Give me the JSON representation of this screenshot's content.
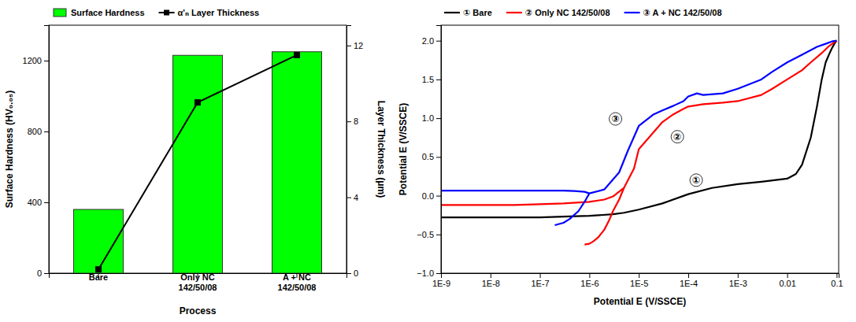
{
  "chart_data": [
    {
      "type": "bar",
      "xlabel": "Process",
      "ylabel": "Surface Hardness (HV₀.₀₅)",
      "y2label": "Layer Thickness (μm)",
      "categories": [
        "Bare",
        "Only NC\n142/50/08",
        "A + NC\n142/50/08"
      ],
      "series": [
        {
          "name": "Surface Hardness",
          "type": "bar",
          "color": "#00FF00",
          "values": [
            360,
            1230,
            1250
          ]
        },
        {
          "name": "α'ₙ Layer Thickness",
          "type": "line",
          "color": "black",
          "marker": "square",
          "axis": "y2",
          "values": [
            0.2,
            9.0,
            11.5
          ]
        }
      ],
      "ylim": [
        0,
        1400
      ],
      "yticks": [
        0,
        400,
        800,
        1200
      ],
      "y2lim": [
        0,
        13.07
      ],
      "y2ticks": [
        0,
        4,
        8,
        12
      ],
      "legend": "upper left"
    },
    {
      "type": "line",
      "xlabel": "Potential E (V/SSCE)",
      "ylabel": "Potential E (V/SSCE)",
      "log": "x",
      "xlim": [
        1e-09,
        0.11
      ],
      "xticks": [
        {
          "value": 1e-09,
          "label": "1E-9"
        },
        {
          "value": 1e-08,
          "label": "1E-8"
        },
        {
          "value": 1e-07,
          "label": "1E-7"
        },
        {
          "value": 1e-06,
          "label": "1E-6"
        },
        {
          "value": 1e-05,
          "label": "1E-5"
        },
        {
          "value": 0.0001,
          "label": "1E-4"
        },
        {
          "value": 0.001,
          "label": "1E-3"
        },
        0.01,
        0.1
      ],
      "ylim": [
        -1.0,
        2.2
      ],
      "yticks": [
        {
          "value": -1.0,
          "label": "−1.0"
        },
        {
          "value": -0.5,
          "label": "−0.5"
        },
        {
          "value": 0.0,
          "label": "0.0"
        },
        0.5,
        {
          "value": 1.0,
          "label": "1.0"
        },
        1.5,
        {
          "value": 2.0,
          "label": "2.0"
        }
      ],
      "legend": "upper left",
      "series": [
        {
          "name": "① Bare",
          "color": "black",
          "x": [
            1e-09,
            3e-09,
            1e-08,
            3e-08,
            1e-07,
            3e-07,
            1e-06,
            3e-06,
            5e-06,
            1e-05,
            3e-05,
            0.0001,
            0.0003,
            0.001,
            0.003,
            0.01,
            0.015,
            0.02,
            0.03,
            0.04,
            0.05,
            0.06,
            0.07,
            0.08,
            0.09,
            0.1
          ],
          "values": [
            -0.28,
            -0.28,
            -0.28,
            -0.28,
            -0.28,
            -0.27,
            -0.26,
            -0.24,
            -0.22,
            -0.18,
            -0.1,
            0.02,
            0.1,
            0.15,
            0.18,
            0.22,
            0.28,
            0.4,
            0.75,
            1.15,
            1.5,
            1.72,
            1.82,
            1.9,
            1.96,
            2.0
          ]
        },
        {
          "name": "② Only NC 142/50/08",
          "color": "red",
          "x": [
            1e-09,
            3e-09,
            1e-08,
            3e-08,
            1e-07,
            3e-07,
            1e-06,
            2e-06,
            3e-06,
            5e-06,
            8e-06,
            1e-05,
            2e-05,
            3e-05,
            5e-05,
            8e-05,
            0.0001,
            0.0002,
            0.0005,
            0.001,
            0.003,
            0.005,
            0.01,
            0.02,
            0.03,
            0.05,
            0.07,
            0.1,
            null,
            5e-06,
            4e-06,
            3e-06,
            2.5e-06,
            2e-06,
            1.5e-06,
            1.2e-06,
            1e-06,
            8e-07
          ],
          "values": [
            -0.12,
            -0.12,
            -0.12,
            -0.12,
            -0.11,
            -0.1,
            -0.08,
            -0.05,
            -0.01,
            0.1,
            0.35,
            0.6,
            0.82,
            0.95,
            1.05,
            1.12,
            1.15,
            1.18,
            1.2,
            1.22,
            1.3,
            1.38,
            1.5,
            1.62,
            1.72,
            1.84,
            1.93,
            2.0,
            null,
            0.1,
            -0.05,
            -0.2,
            -0.32,
            -0.44,
            -0.54,
            -0.59,
            -0.62,
            -0.63
          ]
        },
        {
          "name": "③ A + NC 142/50/08",
          "color": "blue",
          "x": [
            1e-09,
            3e-09,
            1e-08,
            3e-08,
            1e-07,
            3e-07,
            5e-07,
            8e-07,
            1e-06,
            2e-06,
            4e-06,
            6e-06,
            1e-05,
            2e-05,
            3e-05,
            5e-05,
            8e-05,
            0.0001,
            0.00015,
            0.0002,
            0.0005,
            0.001,
            0.003,
            0.005,
            0.01,
            0.02,
            0.04,
            0.06,
            0.08,
            0.1,
            null,
            1e-06,
            8e-07,
            6e-07,
            4e-07,
            3e-07,
            2e-07
          ],
          "values": [
            0.065,
            0.065,
            0.065,
            0.065,
            0.065,
            0.065,
            0.06,
            0.05,
            0.03,
            0.08,
            0.3,
            0.58,
            0.9,
            1.05,
            1.1,
            1.16,
            1.22,
            1.28,
            1.32,
            1.3,
            1.32,
            1.38,
            1.5,
            1.6,
            1.72,
            1.82,
            1.92,
            1.96,
            1.99,
            2.0,
            null,
            0.03,
            -0.08,
            -0.2,
            -0.3,
            -0.35,
            -0.38
          ]
        }
      ],
      "annotations": [
        {
          "text": "①",
          "x": 0.00012,
          "y": 0.16
        },
        {
          "text": "②",
          "x": 5e-05,
          "y": 0.72
        },
        {
          "text": "③",
          "x": 2.8e-06,
          "y": 0.95
        }
      ]
    }
  ]
}
